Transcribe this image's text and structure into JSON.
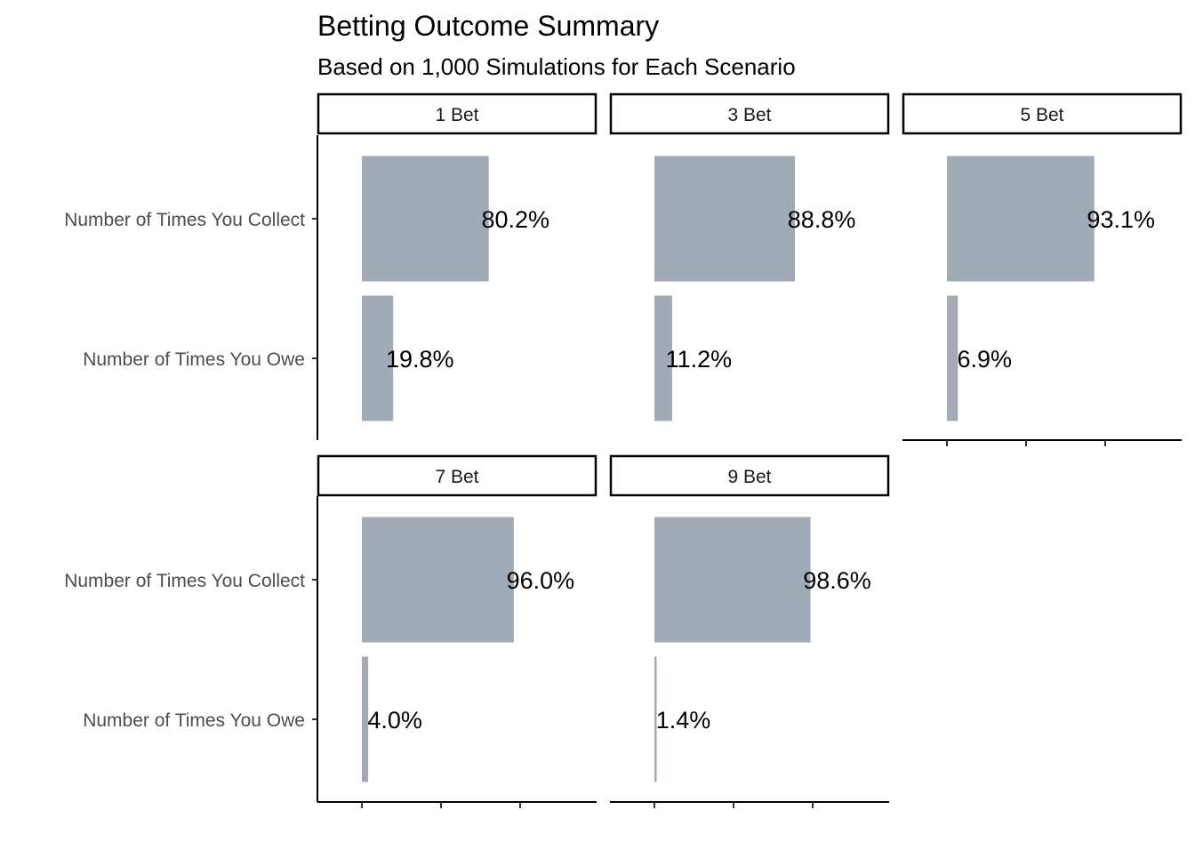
{
  "chart_data": {
    "type": "bar",
    "orientation": "horizontal",
    "faceted": true,
    "title": "Betting Outcome Summary",
    "subtitle": "Based on 1,000 Simulations for Each Scenario",
    "xlabel": "",
    "ylabel": "",
    "categories": [
      "Number of Times You Collect",
      "Number of Times You Owe"
    ],
    "xlim": [
      0,
      1.75
    ],
    "x_tick_labels": false,
    "grid": false,
    "legend": "none",
    "bar_color": "#a0abb6",
    "facets": [
      {
        "name": "1 Bet",
        "values": [
          0.802,
          0.198
        ],
        "labels": [
          "80.2%",
          "19.8%"
        ]
      },
      {
        "name": "3 Bet",
        "values": [
          0.888,
          0.112
        ],
        "labels": [
          "88.8%",
          "11.2%"
        ]
      },
      {
        "name": "5 Bet",
        "values": [
          0.931,
          0.069
        ],
        "labels": [
          "93.1%",
          "6.9%"
        ]
      },
      {
        "name": "7 Bet",
        "values": [
          0.96,
          0.04
        ],
        "labels": [
          "96.0%",
          "4.0%"
        ]
      },
      {
        "name": "9 Bet",
        "values": [
          0.986,
          0.014
        ],
        "labels": [
          "98.6%",
          "1.4%"
        ]
      }
    ]
  }
}
